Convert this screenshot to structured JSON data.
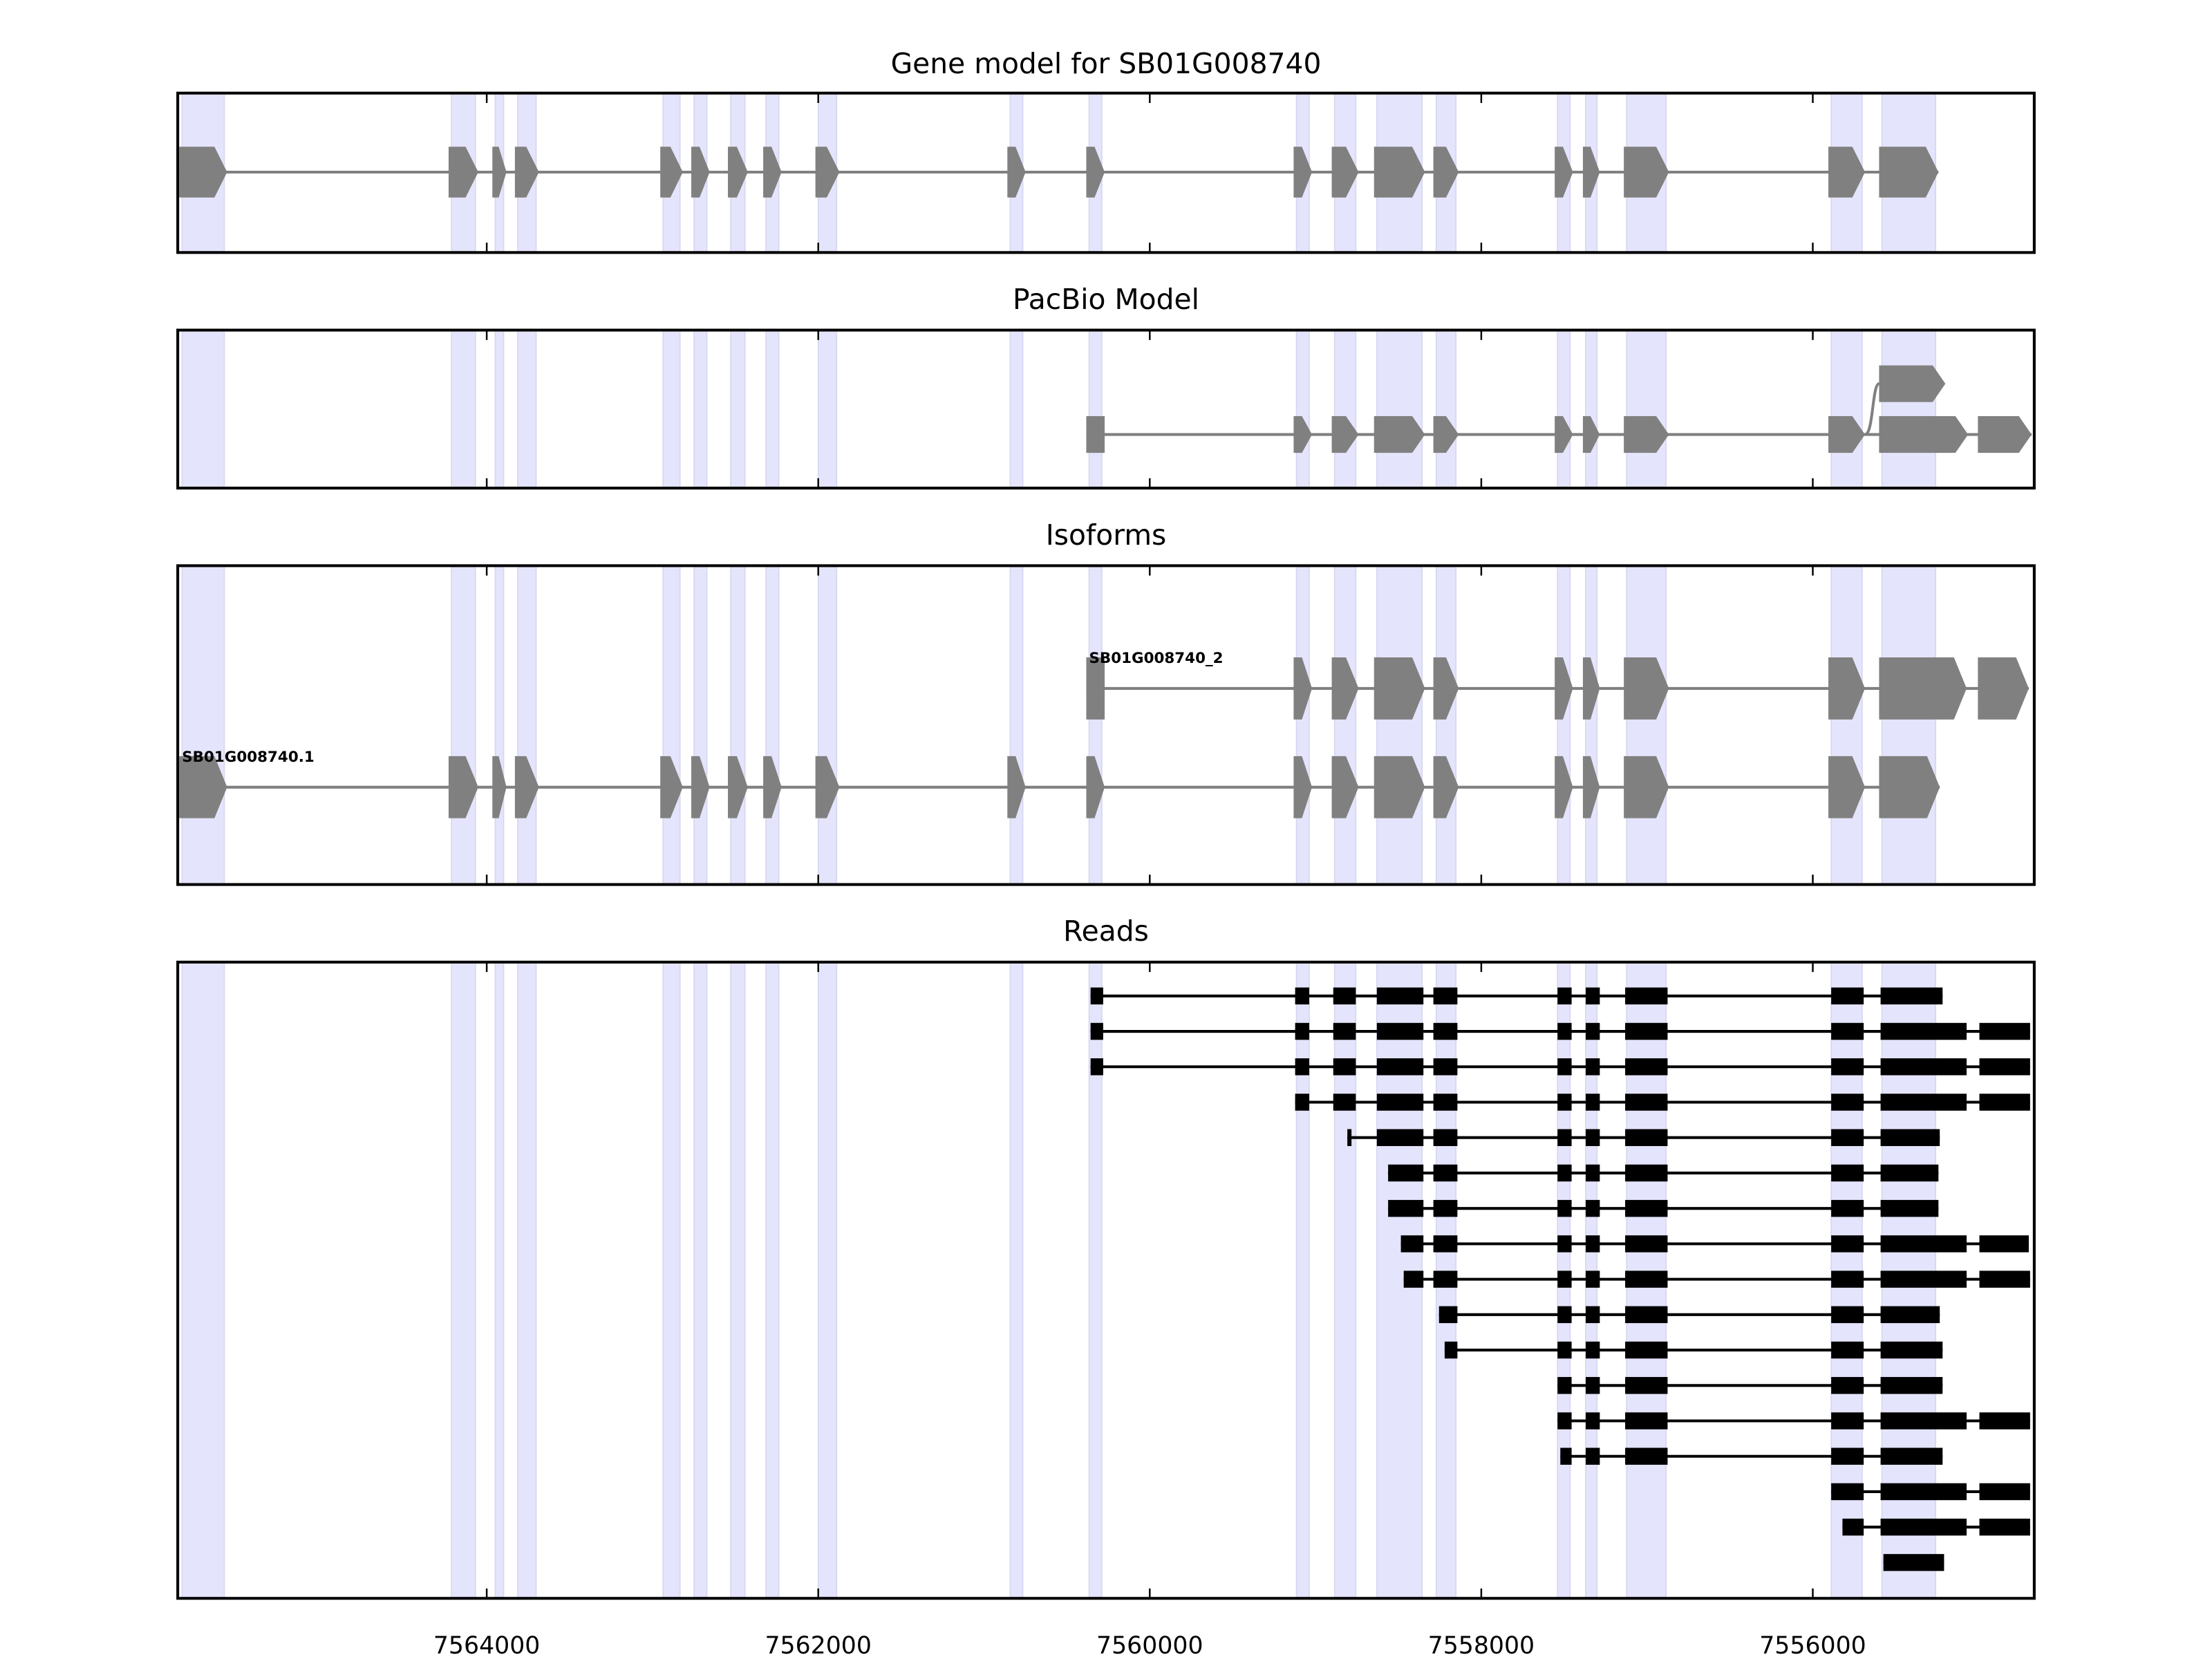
{
  "chart_data": {
    "type": "gene-track",
    "x_axis": {
      "reversed": true,
      "xlim": [
        7565864,
        7554664
      ],
      "ticks": [
        7564000,
        7562000,
        7560000,
        7558000,
        7556000
      ],
      "tick_labels": [
        "7564000",
        "7562000",
        "7560000",
        "7558000",
        "7556000"
      ]
    },
    "colors": {
      "exon": "#808080",
      "read": "#000000",
      "shade": "#e4e4fc",
      "intron": "#808080"
    },
    "panels": [
      {
        "title": "Gene model for SB01G008740"
      },
      {
        "title": "PacBio Model"
      },
      {
        "title": "Isoforms"
      },
      {
        "title": "Reads"
      }
    ],
    "gene_model_exons": [
      [
        7565855,
        7565566
      ],
      [
        7564230,
        7564051
      ],
      [
        7563966,
        7563881
      ],
      [
        7563830,
        7563685
      ],
      [
        7562953,
        7562817
      ],
      [
        7562766,
        7562655
      ],
      [
        7562545,
        7562425
      ],
      [
        7562332,
        7562221
      ],
      [
        7562017,
        7561872
      ],
      [
        7560859,
        7560749
      ],
      [
        7560383,
        7560272
      ],
      [
        7559132,
        7559021
      ],
      [
        7558902,
        7558740
      ],
      [
        7558647,
        7558340
      ],
      [
        7558289,
        7558136
      ],
      [
        7557557,
        7557447
      ],
      [
        7557387,
        7557285
      ],
      [
        7557140,
        7556868
      ],
      [
        7555906,
        7555685
      ],
      [
        7555600,
        7555242
      ]
    ],
    "pacbio_model": {
      "main": [
        [
          7560383,
          7560272
        ],
        [
          7559132,
          7559021
        ],
        [
          7558902,
          7558740
        ],
        [
          7558647,
          7558340
        ],
        [
          7558289,
          7558136
        ],
        [
          7557557,
          7557447
        ],
        [
          7557387,
          7557285
        ],
        [
          7557140,
          7556868
        ],
        [
          7555906,
          7555685
        ],
        [
          7555600,
          7555063
        ],
        [
          7555004,
          7554680
        ]
      ],
      "alternate": [
        [
          7555600,
          7555200
        ]
      ]
    },
    "isoforms": [
      {
        "name": "SB01G008740_2",
        "exons": [
          [
            7560383,
            7560272
          ],
          [
            7559132,
            7559021
          ],
          [
            7558902,
            7558740
          ],
          [
            7558647,
            7558340
          ],
          [
            7558289,
            7558136
          ],
          [
            7557557,
            7557447
          ],
          [
            7557387,
            7557285
          ],
          [
            7557140,
            7556868
          ],
          [
            7555906,
            7555685
          ],
          [
            7555600,
            7555072
          ],
          [
            7555004,
            7554697
          ]
        ]
      },
      {
        "name": "SB01G008740.1",
        "exons": [
          [
            7565855,
            7565566
          ],
          [
            7564230,
            7564051
          ],
          [
            7563966,
            7563881
          ],
          [
            7563830,
            7563685
          ],
          [
            7562953,
            7562817
          ],
          [
            7562766,
            7562655
          ],
          [
            7562545,
            7562425
          ],
          [
            7562332,
            7562221
          ],
          [
            7562017,
            7561872
          ],
          [
            7560859,
            7560749
          ],
          [
            7560383,
            7560272
          ],
          [
            7559132,
            7559021
          ],
          [
            7558902,
            7558740
          ],
          [
            7558647,
            7558340
          ],
          [
            7558289,
            7558136
          ],
          [
            7557557,
            7557447
          ],
          [
            7557387,
            7557285
          ],
          [
            7557140,
            7556868
          ],
          [
            7555906,
            7555685
          ],
          [
            7555600,
            7555234
          ]
        ]
      }
    ],
    "reads": [
      [
        [
          7560357,
          7560281
        ],
        [
          7559123,
          7559038
        ],
        [
          7558893,
          7558757
        ],
        [
          7558630,
          7558349
        ],
        [
          7558289,
          7558144
        ],
        [
          7557540,
          7557455
        ],
        [
          7557370,
          7557285
        ],
        [
          7557132,
          7556876
        ],
        [
          7555889,
          7555693
        ],
        [
          7555591,
          7555217
        ]
      ],
      [
        [
          7560357,
          7560281
        ],
        [
          7559123,
          7559038
        ],
        [
          7558893,
          7558757
        ],
        [
          7558630,
          7558349
        ],
        [
          7558289,
          7558144
        ],
        [
          7557540,
          7557455
        ],
        [
          7557370,
          7557285
        ],
        [
          7557132,
          7556876
        ],
        [
          7555889,
          7555693
        ],
        [
          7555591,
          7555072
        ],
        [
          7554995,
          7554689
        ]
      ],
      [
        [
          7560357,
          7560281
        ],
        [
          7559123,
          7559038
        ],
        [
          7558893,
          7558757
        ],
        [
          7558630,
          7558349
        ],
        [
          7558289,
          7558144
        ],
        [
          7557540,
          7557455
        ],
        [
          7557370,
          7557285
        ],
        [
          7557132,
          7556876
        ],
        [
          7555889,
          7555693
        ],
        [
          7555591,
          7555072
        ],
        [
          7554995,
          7554689
        ]
      ],
      [
        [
          7559123,
          7559038
        ],
        [
          7558893,
          7558757
        ],
        [
          7558630,
          7558349
        ],
        [
          7558289,
          7558144
        ],
        [
          7557540,
          7557455
        ],
        [
          7557370,
          7557285
        ],
        [
          7557132,
          7556876
        ],
        [
          7555889,
          7555693
        ],
        [
          7555591,
          7555072
        ],
        [
          7554995,
          7554689
        ]
      ],
      [
        [
          7558808,
          7558783
        ],
        [
          7558630,
          7558349
        ],
        [
          7558289,
          7558144
        ],
        [
          7557540,
          7557455
        ],
        [
          7557370,
          7557285
        ],
        [
          7557132,
          7556876
        ],
        [
          7555889,
          7555693
        ],
        [
          7555591,
          7555234
        ]
      ],
      [
        [
          7558562,
          7558349
        ],
        [
          7558289,
          7558144
        ],
        [
          7557540,
          7557455
        ],
        [
          7557370,
          7557285
        ],
        [
          7557132,
          7556876
        ],
        [
          7555889,
          7555693
        ],
        [
          7555591,
          7555242
        ]
      ],
      [
        [
          7558562,
          7558349
        ],
        [
          7558289,
          7558144
        ],
        [
          7557540,
          7557455
        ],
        [
          7557370,
          7557285
        ],
        [
          7557132,
          7556876
        ],
        [
          7555889,
          7555693
        ],
        [
          7555591,
          7555242
        ]
      ],
      [
        [
          7558485,
          7558349
        ],
        [
          7558289,
          7558144
        ],
        [
          7557540,
          7557455
        ],
        [
          7557370,
          7557285
        ],
        [
          7557132,
          7556876
        ],
        [
          7555889,
          7555693
        ],
        [
          7555591,
          7555072
        ],
        [
          7554995,
          7554697
        ]
      ],
      [
        [
          7558468,
          7558349
        ],
        [
          7558289,
          7558144
        ],
        [
          7557540,
          7557455
        ],
        [
          7557370,
          7557285
        ],
        [
          7557132,
          7556876
        ],
        [
          7555889,
          7555693
        ],
        [
          7555591,
          7555072
        ],
        [
          7554995,
          7554689
        ]
      ],
      [
        [
          7558255,
          7558144
        ],
        [
          7557540,
          7557455
        ],
        [
          7557370,
          7557285
        ],
        [
          7557132,
          7556876
        ],
        [
          7555889,
          7555693
        ],
        [
          7555591,
          7555234
        ]
      ],
      [
        [
          7558221,
          7558144
        ],
        [
          7557540,
          7557455
        ],
        [
          7557370,
          7557285
        ],
        [
          7557132,
          7556876
        ],
        [
          7555889,
          7555693
        ],
        [
          7555591,
          7555217
        ]
      ],
      [
        [
          7557540,
          7557455
        ],
        [
          7557370,
          7557285
        ],
        [
          7557132,
          7556876
        ],
        [
          7555889,
          7555693
        ],
        [
          7555591,
          7555217
        ]
      ],
      [
        [
          7557540,
          7557455
        ],
        [
          7557370,
          7557285
        ],
        [
          7557132,
          7556876
        ],
        [
          7555889,
          7555693
        ],
        [
          7555591,
          7555072
        ],
        [
          7554995,
          7554689
        ]
      ],
      [
        [
          7557523,
          7557455
        ],
        [
          7557370,
          7557285
        ],
        [
          7557132,
          7556876
        ],
        [
          7555889,
          7555693
        ],
        [
          7555591,
          7555217
        ]
      ],
      [
        [
          7555889,
          7555693
        ],
        [
          7555591,
          7555072
        ],
        [
          7554995,
          7554689
        ]
      ],
      [
        [
          7555821,
          7555693
        ],
        [
          7555591,
          7555072
        ],
        [
          7554995,
          7554689
        ]
      ],
      [
        [
          7555574,
          7555208
        ]
      ]
    ]
  }
}
